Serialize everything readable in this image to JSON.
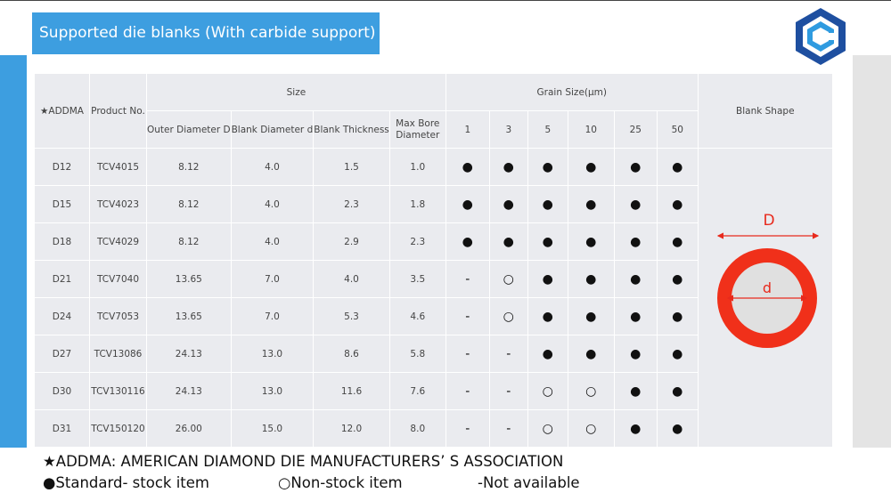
{
  "header": {
    "title": "Supported die blanks (With carbide support)"
  },
  "table": {
    "group_headers": [
      "★ADDMA",
      "Product No.",
      "Size",
      "Grain Size(μm)",
      "Blank Shape"
    ],
    "sub_headers": [
      "Outer Diameter D",
      "Blank Diameter d",
      "Blank Thickness",
      "Max Bore Diameter",
      "1",
      "3",
      "5",
      "10",
      "25",
      "50"
    ],
    "rows": [
      [
        "D12",
        "TCV4015",
        "8.12",
        "4.0",
        "1.5",
        "1.0",
        "●",
        "●",
        "●",
        "●",
        "●",
        "●"
      ],
      [
        "D15",
        "TCV4023",
        "8.12",
        "4.0",
        "2.3",
        "1.8",
        "●",
        "●",
        "●",
        "●",
        "●",
        "●"
      ],
      [
        "D18",
        "TCV4029",
        "8.12",
        "4.0",
        "2.9",
        "2.3",
        "●",
        "●",
        "●",
        "●",
        "●",
        "●"
      ],
      [
        "D21",
        "TCV7040",
        "13.65",
        "7.0",
        "4.0",
        "3.5",
        "-",
        "○",
        "●",
        "●",
        "●",
        "●"
      ],
      [
        "D24",
        "TCV7053",
        "13.65",
        "7.0",
        "5.3",
        "4.6",
        "-",
        "○",
        "●",
        "●",
        "●",
        "●"
      ],
      [
        "D27",
        "TCV13086",
        "24.13",
        "13.0",
        "8.6",
        "5.8",
        "-",
        "-",
        "●",
        "●",
        "●",
        "●"
      ],
      [
        "D30",
        "TCV130116",
        "24.13",
        "13.0",
        "11.6",
        "7.6",
        "-",
        "-",
        "○",
        "○",
        "●",
        "●"
      ],
      [
        "D31",
        "TCV150120",
        "26.00",
        "15.0",
        "12.0",
        "8.0",
        "-",
        "-",
        "○",
        "○",
        "●",
        "●"
      ]
    ],
    "shape_labels": [
      "D",
      "d"
    ]
  },
  "footnotes": {
    "addma": "★ADDMA: AMERICAN DIAMOND DIE MANUFACTURERS’ S ASSOCIATION",
    "legend": [
      "●Standard- stock item",
      "○Non-stock item",
      "-Not available"
    ]
  }
}
